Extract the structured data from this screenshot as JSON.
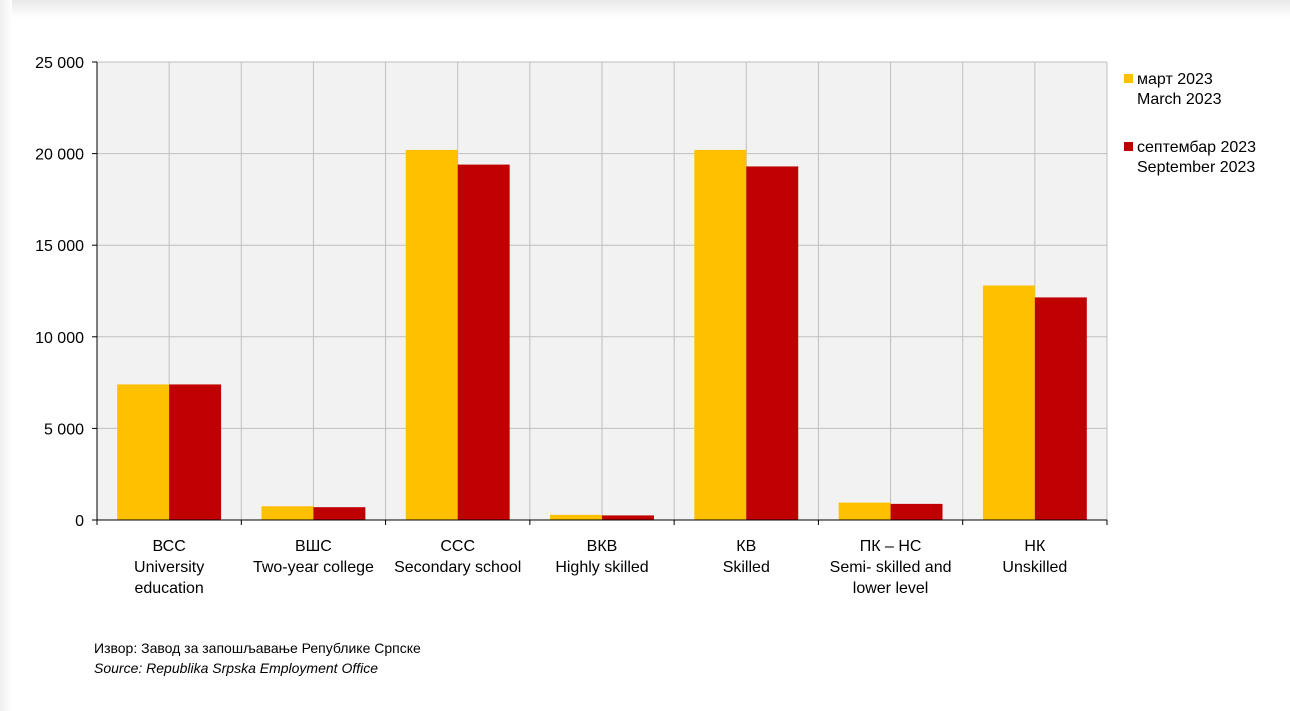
{
  "chart_data": {
    "type": "bar",
    "categories": [
      {
        "code": "ВСС",
        "lines": [
          "University",
          "education"
        ]
      },
      {
        "code": "ВШС",
        "lines": [
          "Two-year college"
        ]
      },
      {
        "code": "ССС",
        "lines": [
          "Secondary school"
        ]
      },
      {
        "code": "ВКВ",
        "lines": [
          "Highly skilled"
        ]
      },
      {
        "code": "КВ",
        "lines": [
          "Skilled"
        ]
      },
      {
        "code": "ПК – НС",
        "lines": [
          "Semi- skilled and",
          "lower level"
        ]
      },
      {
        "code": "НК",
        "lines": [
          "Unskilled"
        ]
      }
    ],
    "series": [
      {
        "name": "март 2023",
        "name_en": "March 2023",
        "color": "#FFC000",
        "values": [
          7400,
          750,
          20200,
          280,
          20200,
          950,
          12800
        ]
      },
      {
        "name": "септембар 2023",
        "name_en": "September 2023",
        "color": "#C00000",
        "values": [
          7400,
          700,
          19400,
          250,
          19300,
          880,
          12150
        ]
      }
    ],
    "ylim": [
      0,
      25000
    ],
    "yticks": [
      0,
      5000,
      10000,
      15000,
      20000,
      25000
    ],
    "ytick_labels": [
      "0",
      "5 000",
      "10 000",
      "15 000",
      "20 000",
      "25 000"
    ],
    "grid": true,
    "legend_position": "right"
  },
  "legend": {
    "items": [
      {
        "label": "март 2023",
        "label_en": "March 2023",
        "color": "#FFC000"
      },
      {
        "label": "септембар 2023",
        "label_en": "September 2023",
        "color": "#C00000"
      }
    ]
  },
  "source": {
    "line_sr": "Извор: Завод за запошљавање Републике Српске",
    "line_en": "Source: Republika Srpska Employment Office"
  },
  "colors": {
    "grid": "#bfbfbf",
    "plot_bg": "#f2f2f2",
    "axis": "#000000"
  }
}
